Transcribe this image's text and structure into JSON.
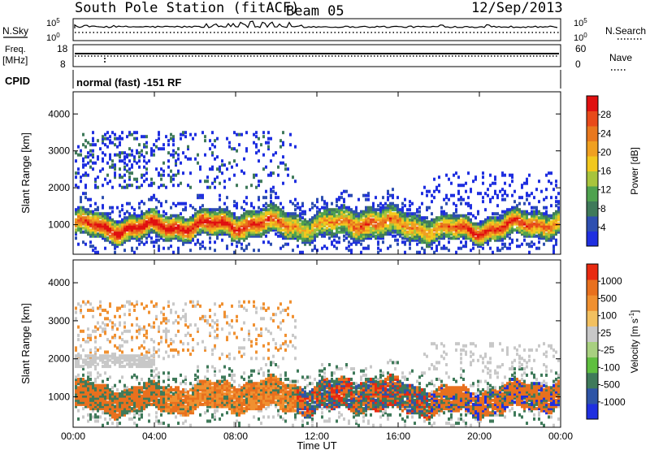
{
  "header": {
    "station": "South Pole Station (fitACF)",
    "beam": "Beam 05",
    "date": "12/Sep/2013"
  },
  "panels": {
    "nsky": {
      "label": "N.Sky",
      "ticks": [
        "10^5",
        "10^0"
      ],
      "right_label": "N.Search",
      "right_ticks": [
        "10^5",
        "10^0"
      ]
    },
    "freq": {
      "label": "Freq.",
      "unit": "[MHz]",
      "ticks": [
        "18",
        "8"
      ],
      "right_label": "Nave",
      "right_ticks": [
        "60",
        "0"
      ]
    },
    "cpid": {
      "label": "CPID",
      "text": "normal (fast) -151 RF"
    }
  },
  "chart_data": [
    {
      "type": "heatmap",
      "name": "power",
      "ylabel": "Slant Range [km]",
      "y_ticks": [
        1000,
        2000,
        3000,
        4000
      ],
      "ylim": [
        200,
        4600
      ],
      "x_ticks": [
        "00:00",
        "04:00",
        "08:00",
        "12:00",
        "16:00",
        "20:00",
        "00:00"
      ],
      "xlim_hours": [
        0,
        24
      ],
      "colorbar": {
        "title": "Power [dB]",
        "ticks": [
          "4",
          "8",
          "12",
          "16",
          "20",
          "24",
          "28"
        ],
        "colors": [
          "#1f2fe0",
          "#2e4fb0",
          "#3f7a5a",
          "#4fa24f",
          "#a8c43c",
          "#f2c81e",
          "#f0a020",
          "#e8781e",
          "#e84a1a",
          "#e01010"
        ]
      },
      "scatter_band_km": [
        2000,
        3500
      ],
      "bands": [
        {
          "t": 0.0,
          "center": 1050,
          "width": 350,
          "level": 0.7
        },
        {
          "t": 1.5,
          "center": 900,
          "width": 350,
          "level": 0.95
        },
        {
          "t": 4.0,
          "center": 950,
          "width": 330,
          "level": 0.95
        },
        {
          "t": 7.0,
          "center": 1000,
          "width": 350,
          "level": 0.9
        },
        {
          "t": 9.5,
          "center": 1050,
          "width": 380,
          "level": 0.8
        },
        {
          "t": 11.5,
          "center": 950,
          "width": 350,
          "level": 0.5
        },
        {
          "t": 14.5,
          "center": 1100,
          "width": 420,
          "level": 0.75
        },
        {
          "t": 17.5,
          "center": 900,
          "width": 350,
          "level": 0.55
        },
        {
          "t": 19.5,
          "center": 850,
          "width": 320,
          "level": 0.9
        },
        {
          "t": 22.0,
          "center": 1000,
          "width": 350,
          "level": 0.85
        },
        {
          "t": 24.0,
          "center": 1100,
          "width": 350,
          "level": 0.6
        }
      ]
    },
    {
      "type": "heatmap",
      "name": "velocity",
      "ylabel": "Slant Range [km]",
      "y_ticks": [
        1000,
        2000,
        3000,
        4000
      ],
      "ylim": [
        200,
        4600
      ],
      "x_ticks": [
        "00:00",
        "04:00",
        "08:00",
        "12:00",
        "16:00",
        "20:00",
        "00:00"
      ],
      "xlabel": "Time UT",
      "xlim_hours": [
        0,
        24
      ],
      "colorbar": {
        "title": "Velocity [m s^-1]",
        "ticks": [
          "1000",
          "500",
          "100",
          "25",
          "-25",
          "-100",
          "-500",
          "-1000"
        ],
        "colors": [
          "#1f2fe0",
          "#2e54a6",
          "#3f7a5a",
          "#5fbf3f",
          "#a8d080",
          "#c8c8c8",
          "#f2c060",
          "#f09030",
          "#e8701e",
          "#e82a10"
        ]
      },
      "regions": [
        {
          "t0": 0.0,
          "t1": 4.5,
          "dominant": "orange",
          "secondary": "green"
        },
        {
          "t0": 4.5,
          "t1": 11.0,
          "dominant": "orange-red",
          "secondary": "green"
        },
        {
          "t0": 11.0,
          "t1": 17.5,
          "dominant": "mixed",
          "secondary": "green"
        },
        {
          "t0": 17.5,
          "t1": 24.0,
          "dominant": "orange",
          "secondary": "blue"
        }
      ]
    }
  ]
}
